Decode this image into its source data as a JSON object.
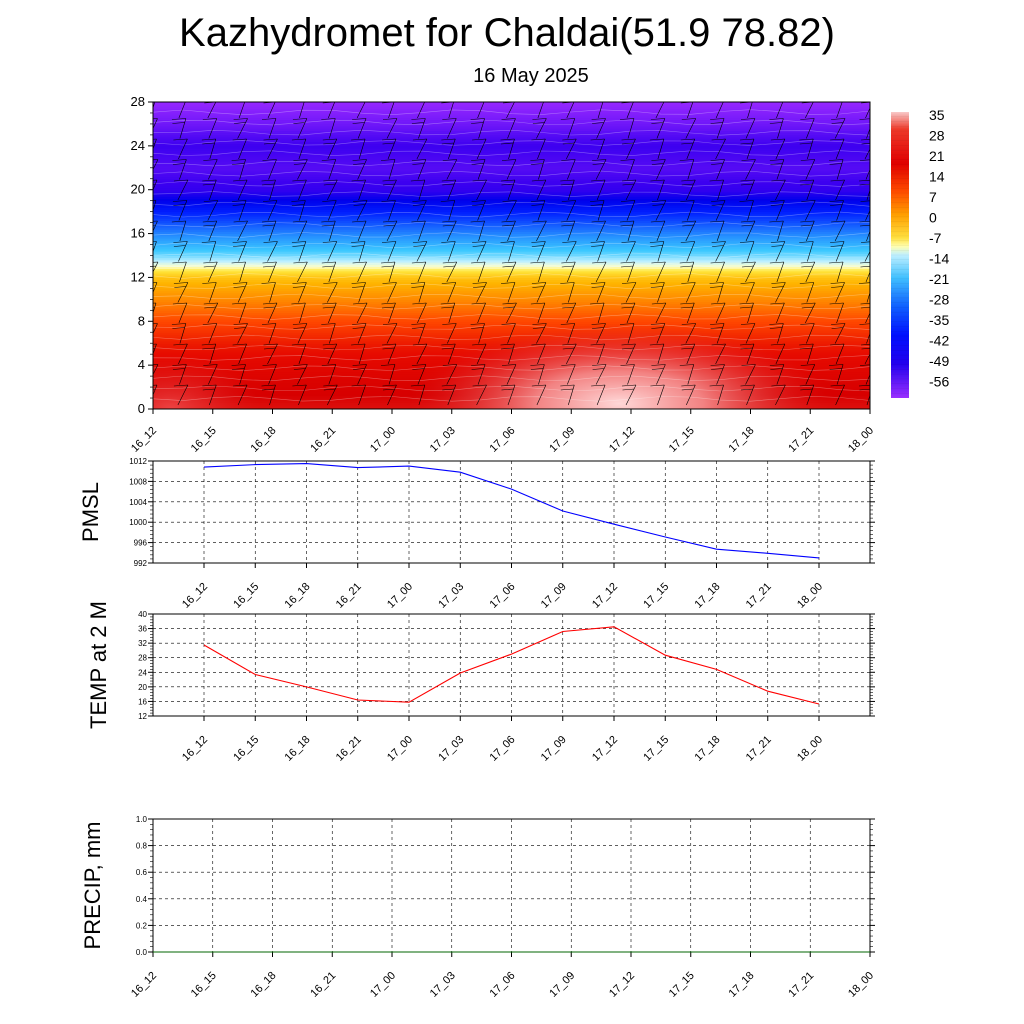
{
  "header": {
    "title": "Kazhydromet for Chaldai(51.9 78.82)",
    "date": "16 May 2025"
  },
  "colors": {
    "pmsl_line": "#0000ff",
    "temp_line": "#ff0000",
    "precip_line": "#006400",
    "grid": "#000000"
  },
  "chart_data": [
    {
      "type": "heatmap",
      "title": "",
      "x_ticks": [
        "16_12",
        "16_15",
        "16_18",
        "16_21",
        "17_00",
        "17_03",
        "17_06",
        "17_09",
        "17_12",
        "17_15",
        "17_18",
        "17_21",
        "18_00"
      ],
      "y_ticks": [
        "0",
        "4",
        "8",
        "12",
        "16",
        "20",
        "24",
        "28"
      ],
      "ylim": [
        0,
        28
      ],
      "colorbar_labels": [
        "35",
        "28",
        "21",
        "14",
        "7",
        "0",
        "-7",
        "-14",
        "-21",
        "-28",
        "-35",
        "-42",
        "-49",
        "-56"
      ],
      "colorbar_range": [
        -63,
        42
      ],
      "temperature_profile": {
        "heights": [
          0,
          2,
          4,
          6,
          8,
          10,
          12,
          13,
          14,
          16,
          18,
          20,
          22,
          24,
          26,
          28
        ],
        "values": [
          30,
          27,
          23,
          19,
          14,
          6,
          -2,
          -10,
          -18,
          -30,
          -42,
          -55,
          -58,
          -56,
          -60,
          -63
        ]
      },
      "warm_core": {
        "x_index": 9,
        "peak_value": 40
      },
      "wind_barbs": true
    },
    {
      "type": "line",
      "ylabel": "PMSL",
      "x_ticks": [
        "16_12",
        "16_15",
        "16_18",
        "16_21",
        "17_00",
        "17_03",
        "17_06",
        "17_09",
        "17_12",
        "17_15",
        "17_18",
        "17_21",
        "18_00"
      ],
      "y_ticks": [
        "1012",
        "1008",
        "1004",
        "1000",
        "996",
        "992"
      ],
      "ylim": [
        992,
        1012
      ],
      "series": [
        {
          "values": [
            1010.8,
            1011.3,
            1011.5,
            1010.7,
            1011.0,
            1009.8,
            1006.5,
            1002.2,
            999.6,
            997.1,
            994.7,
            993.9,
            993.0
          ]
        }
      ],
      "grid": true
    },
    {
      "type": "line",
      "ylabel": "TEMP at 2 M",
      "x_ticks": [
        "16_12",
        "16_15",
        "16_18",
        "16_21",
        "17_00",
        "17_03",
        "17_06",
        "17_09",
        "17_12",
        "17_15",
        "17_18",
        "17_21",
        "18_00"
      ],
      "y_ticks": [
        "40",
        "36",
        "32",
        "28",
        "24",
        "20",
        "16",
        "12"
      ],
      "ylim": [
        12,
        40
      ],
      "series": [
        {
          "values": [
            31.5,
            23.4,
            20.0,
            16.4,
            15.8,
            23.8,
            29.0,
            35.2,
            36.5,
            28.7,
            24.8,
            18.8,
            15.3
          ]
        }
      ],
      "grid": true
    },
    {
      "type": "line",
      "ylabel": "PRECIP, mm",
      "x_ticks": [
        "16_12",
        "16_15",
        "16_18",
        "16_21",
        "17_00",
        "17_03",
        "17_06",
        "17_09",
        "17_12",
        "17_15",
        "17_18",
        "17_21",
        "18_00"
      ],
      "y_ticks": [
        "1.0",
        "0.8",
        "0.6",
        "0.4",
        "0.2",
        "0.0"
      ],
      "ylim": [
        0,
        1
      ],
      "series": [
        {
          "values": [
            0,
            0,
            0,
            0,
            0,
            0,
            0,
            0,
            0,
            0,
            0,
            0,
            0
          ]
        }
      ],
      "grid": true
    }
  ]
}
